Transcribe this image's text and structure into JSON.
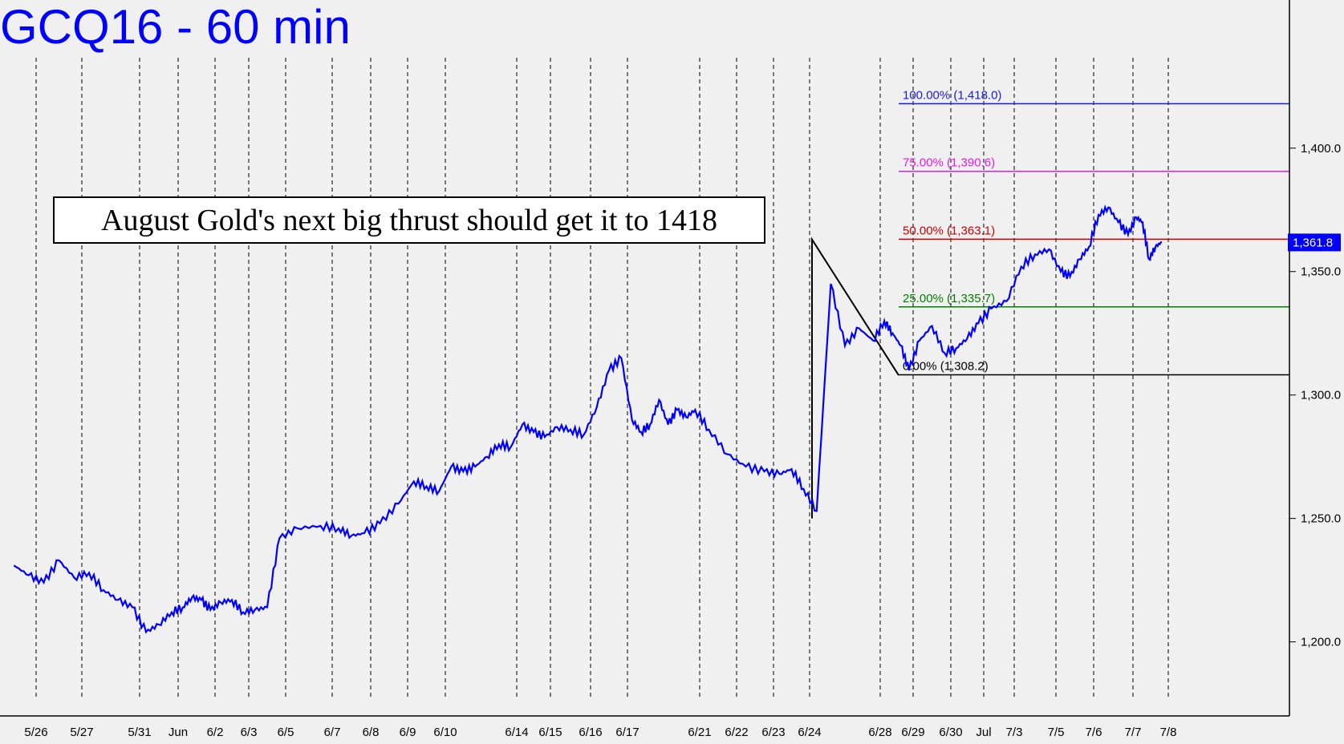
{
  "chart_data": {
    "type": "line",
    "title": "GCQ16 - 60 min",
    "annotation": "August Gold's next big thrust should get it to 1418",
    "last_price_label": "1,361.8",
    "ylim": [
      1170,
      1460
    ],
    "y_ticks": [
      {
        "value": 1200,
        "label": "1,200.0"
      },
      {
        "value": 1250,
        "label": "1,250.0"
      },
      {
        "value": 1300,
        "label": "1,300.0"
      },
      {
        "value": 1350,
        "label": "1,350.0"
      },
      {
        "value": 1400,
        "label": "1,400.0"
      }
    ],
    "x_ticks": [
      "5/26",
      "5/27",
      "5/31",
      "Jun",
      "6/2",
      "6/3",
      "6/5",
      "6/7",
      "6/8",
      "6/9",
      "6/10",
      "6/14",
      "6/15",
      "6/16",
      "6/17",
      "6/21",
      "6/22",
      "6/23",
      "6/24",
      "6/28",
      "6/29",
      "6/30",
      "Jul",
      "7/3",
      "7/5",
      "7/6",
      "7/7",
      "7/8"
    ],
    "fib_levels": [
      {
        "label": "100.00% (1,418.0)",
        "value": 1418.0,
        "color": "#1a1ae6"
      },
      {
        "label": "75.00% (1,390.6)",
        "value": 1390.6,
        "color": "#e61ae6"
      },
      {
        "label": "50.00% (1,363.1)",
        "value": 1363.1,
        "color": "#cc0000"
      },
      {
        "label": "25.00% (1,335.7)",
        "value": 1335.7,
        "color": "#008000"
      },
      {
        "label": "0.00% (1,308.2)",
        "value": 1308.2,
        "color": "#000000"
      }
    ],
    "swing_points": [
      {
        "x": "6/24",
        "y": 1250
      },
      {
        "x": "6/24",
        "y": 1363
      },
      {
        "x": "6/28",
        "y": 1308
      }
    ],
    "series": [
      {
        "color": "#0000ff",
        "points": [
          [
            "5/25",
            1231
          ],
          [
            "5/25",
            1227
          ],
          [
            "5/26",
            1224
          ],
          [
            "5/26",
            1233
          ],
          [
            "5/26",
            1226
          ],
          [
            "5/27",
            1228
          ],
          [
            "5/27",
            1221
          ],
          [
            "5/27",
            1217
          ],
          [
            "5/27",
            1214
          ],
          [
            "5/31",
            1204
          ],
          [
            "5/31",
            1207
          ],
          [
            "5/31",
            1212
          ],
          [
            "Jun",
            1214
          ],
          [
            "Jun",
            1218
          ],
          [
            "Jun",
            1217
          ],
          [
            "Jun",
            1213
          ],
          [
            "6/2",
            1216
          ],
          [
            "6/2",
            1217
          ],
          [
            "6/2",
            1212
          ],
          [
            "6/3",
            1213
          ],
          [
            "6/3",
            1214
          ],
          [
            "6/3",
            1242
          ],
          [
            "6/5",
            1246
          ],
          [
            "6/5",
            1247
          ],
          [
            "6/7",
            1246
          ],
          [
            "6/7",
            1243
          ],
          [
            "6/7",
            1244
          ],
          [
            "6/8",
            1248
          ],
          [
            "6/8",
            1256
          ],
          [
            "6/9",
            1265
          ],
          [
            "6/9",
            1263
          ],
          [
            "6/9",
            1261
          ],
          [
            "6/10",
            1271
          ],
          [
            "6/10",
            1269
          ],
          [
            "6/10",
            1271
          ],
          [
            "6/10",
            1275
          ],
          [
            "6/10",
            1280
          ],
          [
            "6/10",
            1279
          ],
          [
            "6/14",
            1288
          ],
          [
            "6/14",
            1285
          ],
          [
            "6/14",
            1283
          ],
          [
            "6/15",
            1287
          ],
          [
            "6/15",
            1286
          ],
          [
            "6/15",
            1284
          ],
          [
            "6/16",
            1295
          ],
          [
            "6/16",
            1310
          ],
          [
            "6/16",
            1315
          ],
          [
            "6/17",
            1290
          ],
          [
            "6/17",
            1285
          ],
          [
            "6/17",
            1288
          ],
          [
            "6/17",
            1298
          ],
          [
            "6/17",
            1288
          ],
          [
            "6/17",
            1294
          ],
          [
            "6/17",
            1291
          ],
          [
            "6/17",
            1294
          ],
          [
            "6/21",
            1286
          ],
          [
            "6/21",
            1276
          ],
          [
            "6/22",
            1271
          ],
          [
            "6/22",
            1269
          ],
          [
            "6/23",
            1268
          ],
          [
            "6/23",
            1270
          ],
          [
            "6/23",
            1262
          ],
          [
            "6/24",
            1253
          ],
          [
            "6/24",
            1345
          ],
          [
            "6/24",
            1320
          ],
          [
            "6/24",
            1327
          ],
          [
            "6/24",
            1322
          ],
          [
            "6/28",
            1330
          ],
          [
            "6/28",
            1325
          ],
          [
            "6/28",
            1320
          ],
          [
            "6/28",
            1310
          ],
          [
            "6/29",
            1322
          ],
          [
            "6/29",
            1328
          ],
          [
            "6/29",
            1317
          ],
          [
            "6/30",
            1319
          ],
          [
            "6/30",
            1323
          ],
          [
            "6/30",
            1329
          ],
          [
            "Jul",
            1335
          ],
          [
            "Jul",
            1338
          ],
          [
            "7/3",
            1352
          ],
          [
            "7/3",
            1357
          ],
          [
            "7/3",
            1359
          ],
          [
            "7/5",
            1350
          ],
          [
            "7/5",
            1348
          ],
          [
            "7/5",
            1355
          ],
          [
            "7/5",
            1360
          ],
          [
            "7/6",
            1373
          ],
          [
            "7/6",
            1376
          ],
          [
            "7/6",
            1370
          ],
          [
            "7/6",
            1365
          ],
          [
            "7/7",
            1372
          ],
          [
            "7/7",
            1370
          ],
          [
            "7/7",
            1355
          ],
          [
            "7/7",
            1360
          ],
          [
            "7/7",
            1362
          ]
        ]
      }
    ]
  }
}
